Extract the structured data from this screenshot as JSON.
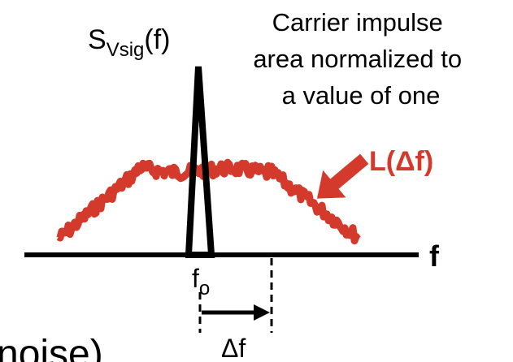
{
  "y_label": {
    "base": "S",
    "sub": "Vsig",
    "suffix": "(f)"
  },
  "annotation": [
    "Carrier impulse",
    "area normalized to",
    "a value of one"
  ],
  "phase_noise_label": "L(Δf)",
  "x_axis_label": "f",
  "carrier_label": {
    "base": "f",
    "sub": "o"
  },
  "offset_label": "Δf",
  "partial_text": "noise)",
  "colors": {
    "noise": "#d33a2c",
    "ink": "#000000"
  }
}
